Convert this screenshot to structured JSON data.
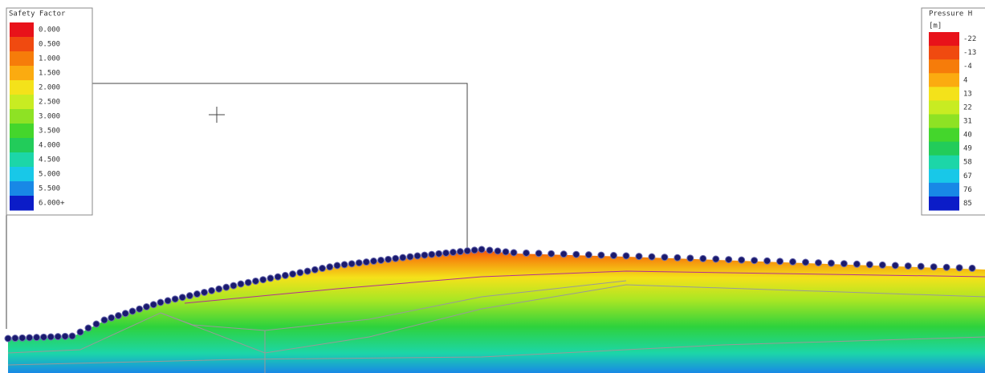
{
  "safety_factor_legend": {
    "title": "Safety Factor",
    "labels": [
      "0.000",
      "0.500",
      "1.000",
      "1.500",
      "2.000",
      "2.500",
      "3.000",
      "3.500",
      "4.000",
      "4.500",
      "5.000",
      "5.500",
      "6.000+"
    ],
    "colors": [
      "#e8121a",
      "#f04a10",
      "#f67c0a",
      "#fbab10",
      "#f4e21a",
      "#c8ec22",
      "#8ee224",
      "#44d62c",
      "#22cc5a",
      "#1cd6a8",
      "#18c8e8",
      "#1888e6",
      "#0b1cc8"
    ]
  },
  "pressure_legend": {
    "title": "Pressure H",
    "unit": "[m]",
    "labels": [
      "-22",
      "-13",
      "-4",
      "4",
      "13",
      "22",
      "31",
      "40",
      "49",
      "58",
      "67",
      "76",
      "85"
    ],
    "colors": [
      "#e8121a",
      "#f04a10",
      "#f67c0a",
      "#fbab10",
      "#f4e21a",
      "#c8ec22",
      "#8ee224",
      "#44d62c",
      "#22cc5a",
      "#1cd6a8",
      "#18c8e8",
      "#1888e6",
      "#0b1cc8"
    ]
  }
}
